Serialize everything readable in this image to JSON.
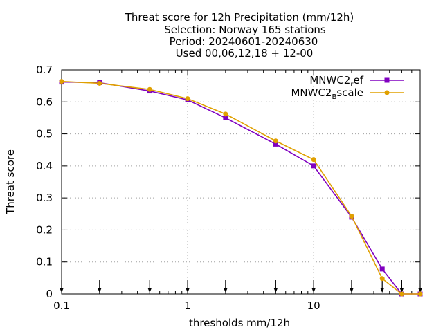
{
  "chart_data": {
    "type": "line",
    "title_lines": [
      "Threat score  for 12h Precipitation (mm/12h)",
      "Selection: Norway    165 stations",
      "Period: 20240601-20240630",
      "Used 00,06,12,18 + 12-00"
    ],
    "xlabel": "thresholds mm/12h",
    "ylabel": "Threat score",
    "x_scale": "log",
    "xlim": [
      0.1,
      70
    ],
    "ylim": [
      0,
      0.7
    ],
    "grid": true,
    "legend_placement": "top-right",
    "x_ticks": [
      {
        "value": 0.1,
        "label": "0.1"
      },
      {
        "value": 1,
        "label": "1"
      },
      {
        "value": 10,
        "label": "10"
      }
    ],
    "y_ticks": [
      {
        "value": 0,
        "label": "0"
      },
      {
        "value": 0.1,
        "label": "0.1"
      },
      {
        "value": 0.2,
        "label": "0.2"
      },
      {
        "value": 0.3,
        "label": "0.3"
      },
      {
        "value": 0.4,
        "label": "0.4"
      },
      {
        "value": 0.5,
        "label": "0.5"
      },
      {
        "value": 0.6,
        "label": "0.6"
      },
      {
        "value": 0.7,
        "label": "0.7"
      }
    ],
    "x": [
      0.1,
      0.2,
      0.5,
      1,
      2,
      5,
      10,
      20,
      35,
      50,
      70
    ],
    "series": [
      {
        "name_main": "MNWC2",
        "name_sub": "r",
        "name_tail": "ef",
        "color": "#8000c0",
        "values": [
          0.662,
          0.66,
          0.634,
          0.606,
          0.55,
          0.468,
          0.4,
          0.24,
          0.078,
          0.0,
          0.0
        ]
      },
      {
        "name_main": "MNWC2",
        "name_sub": "B",
        "name_tail": "scale",
        "color": "#e0a000",
        "values": [
          0.664,
          0.658,
          0.639,
          0.61,
          0.562,
          0.478,
          0.42,
          0.243,
          0.048,
          0.0,
          0.0
        ]
      }
    ]
  }
}
